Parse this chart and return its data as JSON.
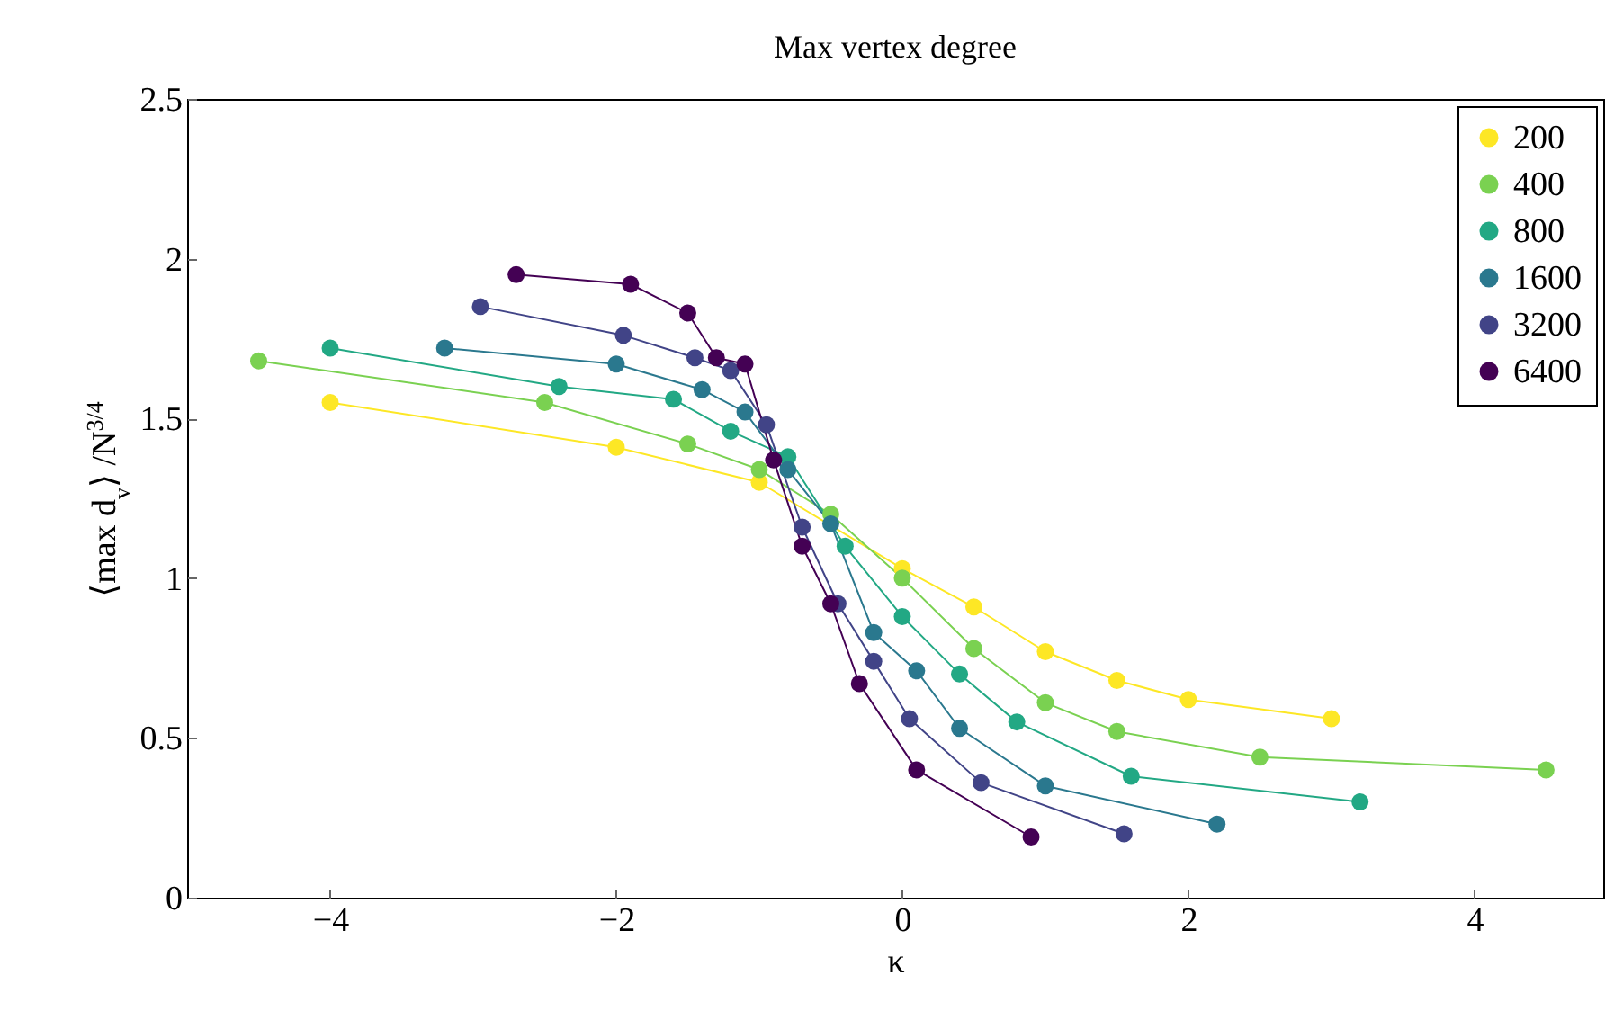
{
  "chart_data": {
    "type": "line",
    "title": "Max vertex degree",
    "xlabel": "κ",
    "ylabel": "⟨max d$_{v}$⟩ /N$^{3/4}$",
    "xlim": [
      -5,
      4.9
    ],
    "xticks": [
      -4,
      -2,
      0,
      2,
      4
    ],
    "ylim": [
      0,
      2.5
    ],
    "yticks": [
      0,
      0.5,
      1,
      1.5,
      2,
      2.5
    ],
    "grid": false,
    "legend": "top right",
    "marker": "circle",
    "line_style": "solid",
    "series": [
      {
        "name": "200",
        "color": "#fde725",
        "x": [
          -4,
          -2,
          -1,
          0,
          0.5,
          1,
          1.5,
          2,
          3
        ],
        "values": [
          1.55,
          1.41,
          1.3,
          1.03,
          0.91,
          0.77,
          0.68,
          0.62,
          0.56
        ]
      },
      {
        "name": "400",
        "color": "#7ad151",
        "x": [
          -4.5,
          -2.5,
          -1.5,
          -1,
          -0.5,
          0,
          0.5,
          1,
          1.5,
          2.5,
          4.5
        ],
        "values": [
          1.68,
          1.55,
          1.42,
          1.34,
          1.2,
          1.0,
          0.78,
          0.61,
          0.52,
          0.44,
          0.4
        ]
      },
      {
        "name": "800",
        "color": "#22a884",
        "x": [
          -4,
          -2.4,
          -1.6,
          -1.2,
          -0.8,
          -0.4,
          0,
          0.4,
          0.8,
          1.6,
          3.2
        ],
        "values": [
          1.72,
          1.6,
          1.56,
          1.46,
          1.38,
          1.1,
          0.88,
          0.7,
          0.55,
          0.38,
          0.3
        ]
      },
      {
        "name": "1600",
        "color": "#2a788e",
        "x": [
          -3.2,
          -2,
          -1.4,
          -1.1,
          -0.8,
          -0.5,
          -0.2,
          0.1,
          0.4,
          1,
          2.2
        ],
        "values": [
          1.72,
          1.67,
          1.59,
          1.52,
          1.34,
          1.17,
          0.83,
          0.71,
          0.53,
          0.35,
          0.23
        ]
      },
      {
        "name": "3200",
        "color": "#414487",
        "x": [
          -2.95,
          -1.95,
          -1.45,
          -1.2,
          -0.95,
          -0.7,
          -0.45,
          -0.2,
          0.05,
          0.55,
          1.55
        ],
        "values": [
          1.85,
          1.76,
          1.69,
          1.65,
          1.48,
          1.16,
          0.92,
          0.74,
          0.56,
          0.36,
          0.2
        ]
      },
      {
        "name": "6400",
        "color": "#440154",
        "x": [
          -2.7,
          -1.9,
          -1.5,
          -1.3,
          -1.1,
          -0.9,
          -0.7,
          -0.5,
          -0.3,
          0.1,
          0.9
        ],
        "values": [
          1.95,
          1.92,
          1.83,
          1.69,
          1.67,
          1.37,
          1.1,
          0.92,
          0.67,
          0.4,
          0.19
        ]
      }
    ]
  }
}
